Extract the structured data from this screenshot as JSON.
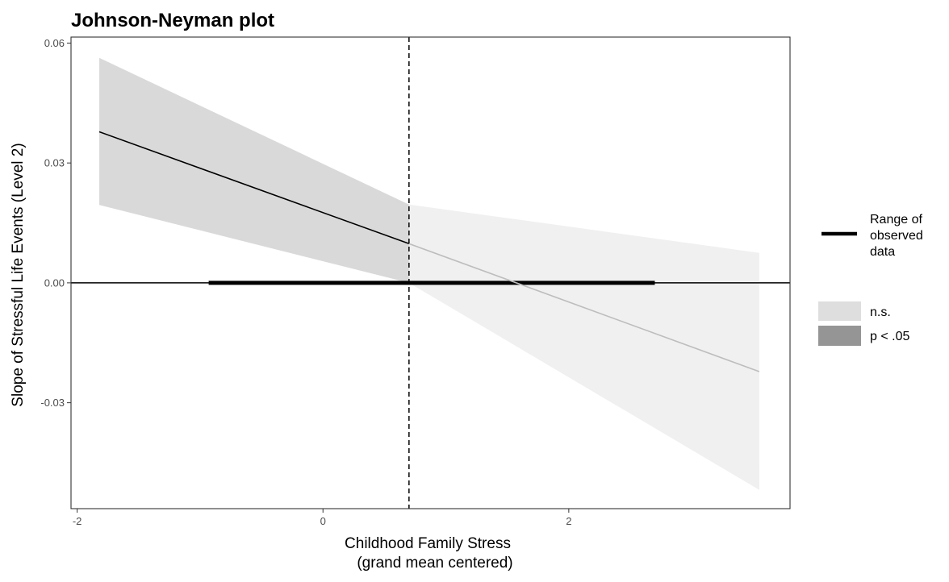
{
  "chart_data": {
    "type": "line",
    "title": "Johnson-Neyman plot",
    "xlabel_lines": [
      "Childhood Family Stress",
      "(grand mean centered)"
    ],
    "ylabel": "Slope of Stressful Life Events (Level 2)",
    "xlim": [
      -2.05,
      3.8
    ],
    "ylim": [
      -0.0565,
      0.0615
    ],
    "x_ticks": [
      {
        "value": -2,
        "label": "-2"
      },
      {
        "value": 0,
        "label": "0"
      },
      {
        "value": 2,
        "label": "2"
      }
    ],
    "y_ticks": [
      {
        "value": -0.03,
        "label": "-0.03"
      },
      {
        "value": 0.0,
        "label": "0.00"
      },
      {
        "value": 0.03,
        "label": "0.03"
      },
      {
        "value": 0.06,
        "label": "0.06"
      }
    ],
    "grid": false,
    "johnson_neyman_point": 0.7,
    "observed_range": [
      -0.93,
      2.7
    ],
    "series": [
      {
        "region": "p < .05",
        "x": [
          -1.82,
          0.7
        ],
        "slope": [
          0.0378,
          0.0098
        ],
        "ci_lower": [
          0.0195,
          0.0
        ],
        "ci_upper": [
          0.0563,
          0.0196
        ]
      },
      {
        "region": "n.s.",
        "x": [
          0.7,
          3.55
        ],
        "slope": [
          0.0098,
          -0.0222
        ],
        "ci_lower": [
          0.0,
          -0.0518
        ],
        "ci_upper": [
          0.0196,
          0.0075
        ]
      }
    ],
    "legend": {
      "position": "right",
      "range_label_lines": [
        "Range of",
        "observed",
        "data"
      ],
      "items": [
        {
          "label": "n.s.",
          "color": "#dedede"
        },
        {
          "label": "p < .05",
          "color": "#959595"
        }
      ]
    },
    "colors": {
      "sig_band": "#d9d9d9",
      "ns_band": "#f0f0f0",
      "sig_line": "#000000",
      "ns_line": "#bdbdbd"
    }
  }
}
